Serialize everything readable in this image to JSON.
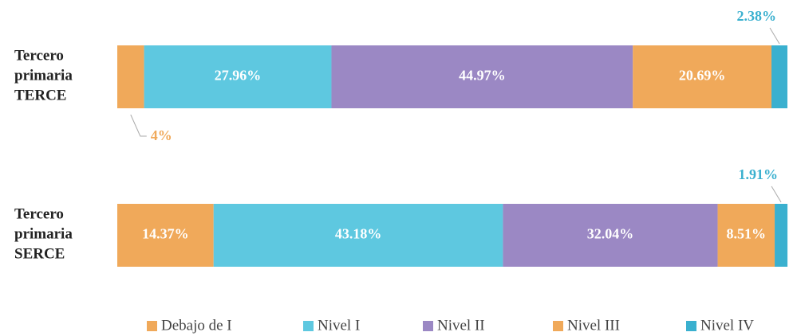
{
  "chart_data": {
    "type": "stacked-bar-horizontal",
    "categories": [
      "Tercero primaria TERCE",
      "Tercero primaria SERCE"
    ],
    "series": [
      {
        "name": "Debajo de I",
        "color": "#f0a95a",
        "values": [
          4,
          14.37
        ],
        "value_labels": [
          "4%",
          "14.37%"
        ]
      },
      {
        "name": "Nivel I",
        "color": "#5ec8e0",
        "values": [
          27.96,
          43.18
        ],
        "value_labels": [
          "27.96%",
          "43.18%"
        ]
      },
      {
        "name": "Nivel II",
        "color": "#9b88c4",
        "values": [
          44.97,
          32.04
        ],
        "value_labels": [
          "44.97%",
          "32.04%"
        ]
      },
      {
        "name": "Nivel III",
        "color": "#f0a95a",
        "values": [
          20.69,
          8.51
        ],
        "value_labels": [
          "20.69%",
          "8.51%"
        ]
      },
      {
        "name": "Nivel IV",
        "color": "#3ab0cf",
        "values": [
          2.38,
          1.91
        ],
        "value_labels": [
          "2.38%",
          "1.91%"
        ]
      }
    ],
    "xlim": [
      0,
      100
    ],
    "legend": "bottom"
  }
}
